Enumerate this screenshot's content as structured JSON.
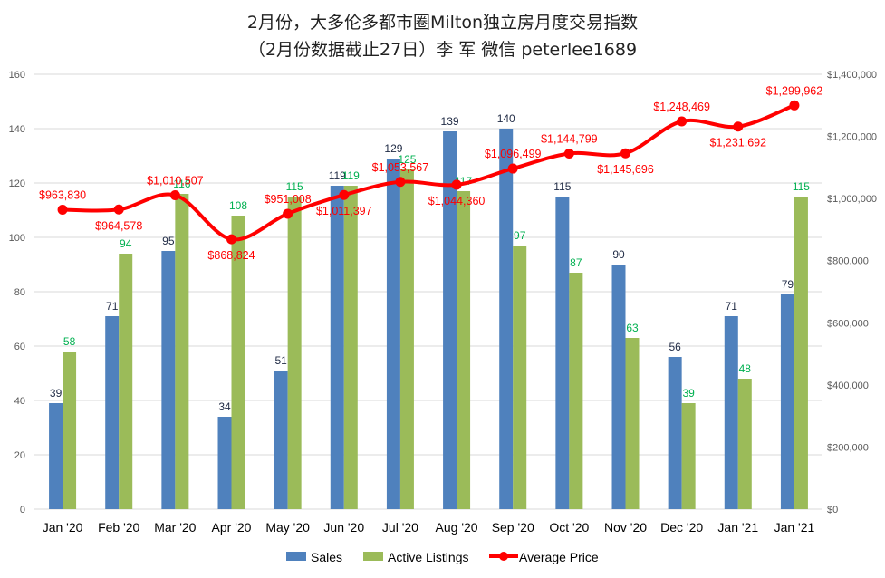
{
  "title": "2月份，大多伦多都市圈Milton独立房月度交易指数",
  "subtitle": "（2月份数据截止27日）李 军  微信  peterlee1689",
  "colors": {
    "sales": "#4f81bd",
    "listings": "#9bbb59",
    "listings_label": "#00b050",
    "price": "#ff0000",
    "price_label": "#ff0000",
    "grid": "#d9d9d9",
    "axis_text": "#595959"
  },
  "chart_data": {
    "type": "bar",
    "categories": [
      "Jan '20",
      "Feb '20",
      "Mar '20",
      "Apr '20",
      "May '20",
      "Jun '20",
      "Jul '20",
      "Aug '20",
      "Sep '20",
      "Oct '20",
      "Nov '20",
      "Dec '20",
      "Jan '21",
      "Jan '21"
    ],
    "series": [
      {
        "name": "Sales",
        "type": "bar",
        "axis": "left",
        "values": [
          39,
          71,
          95,
          34,
          51,
          119,
          129,
          139,
          140,
          115,
          90,
          56,
          71,
          79
        ]
      },
      {
        "name": "Active Listings",
        "type": "bar",
        "axis": "left",
        "values": [
          58,
          94,
          116,
          108,
          115,
          119,
          125,
          117,
          97,
          87,
          63,
          39,
          48,
          115
        ]
      },
      {
        "name": "Average Price",
        "type": "line",
        "axis": "right",
        "values": [
          963830,
          964578,
          1010507,
          868824,
          951008,
          1011397,
          1053567,
          1044360,
          1096499,
          1144799,
          1145696,
          1248469,
          1231692,
          1299962
        ]
      }
    ],
    "bar_labels": {
      "sales": [
        "39",
        "71",
        "95",
        "34",
        "51",
        "119",
        "129",
        "139",
        "140",
        "115",
        "90",
        "56",
        "71",
        "79"
      ],
      "listings": [
        "58",
        "94",
        "116",
        "108",
        "115",
        "119",
        "125",
        "117",
        "97",
        "87",
        "63",
        "39",
        "48",
        "115"
      ]
    },
    "price_labels": [
      "$963,830",
      "$964,578",
      "$1,010,507",
      "$868,824",
      "$951,008",
      "$1,011,397",
      "$1,053,567",
      "$1,044,360",
      "$1,096,499",
      "$1,144,799",
      "$1,145,696",
      "$1,248,469",
      "$1,231,692",
      "$1,299,962"
    ],
    "y_left": {
      "min": 0,
      "max": 160,
      "ticks": [
        "0",
        "20",
        "40",
        "60",
        "80",
        "100",
        "120",
        "140",
        "160"
      ]
    },
    "y_right": {
      "min": 0,
      "max": 1400000,
      "ticks": [
        "$0",
        "$200,000",
        "$400,000",
        "$600,000",
        "$800,000",
        "$1,000,000",
        "$1,200,000",
        "$1,400,000"
      ]
    },
    "grid": true,
    "legend_position": "bottom"
  }
}
